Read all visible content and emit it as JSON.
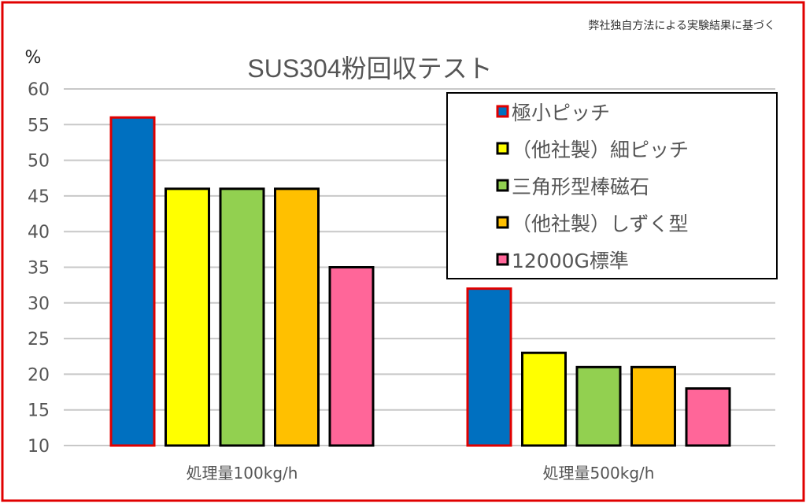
{
  "chart_data": {
    "type": "bar",
    "title": "SUS304粉回収テスト",
    "note": "弊社独自方法による実験結果に基づく",
    "ylabel": "%",
    "ylim": [
      10,
      60
    ],
    "yticks": [
      10,
      15,
      20,
      25,
      30,
      35,
      40,
      45,
      50,
      55,
      60
    ],
    "grid": true,
    "legend_position": "top-right",
    "categories": [
      "処理量100kg/h",
      "処理量500kg/h"
    ],
    "series": [
      {
        "name": "極小ピッチ",
        "values": [
          56,
          32
        ],
        "color": "#0070C0",
        "outline": "#E00000"
      },
      {
        "name": "（他社製）細ピッチ",
        "values": [
          46,
          23
        ],
        "color": "#FFFF00",
        "outline": "#000000"
      },
      {
        "name": "三角形型棒磁石",
        "values": [
          46,
          21
        ],
        "color": "#92D050",
        "outline": "#000000"
      },
      {
        "name": "（他社製）しずく型",
        "values": [
          46,
          21
        ],
        "color": "#FFC000",
        "outline": "#000000"
      },
      {
        "name": "12000G標準",
        "values": [
          35,
          18
        ],
        "color": "#FF6699",
        "outline": "#000000"
      }
    ],
    "frame_color": "#E00000"
  }
}
